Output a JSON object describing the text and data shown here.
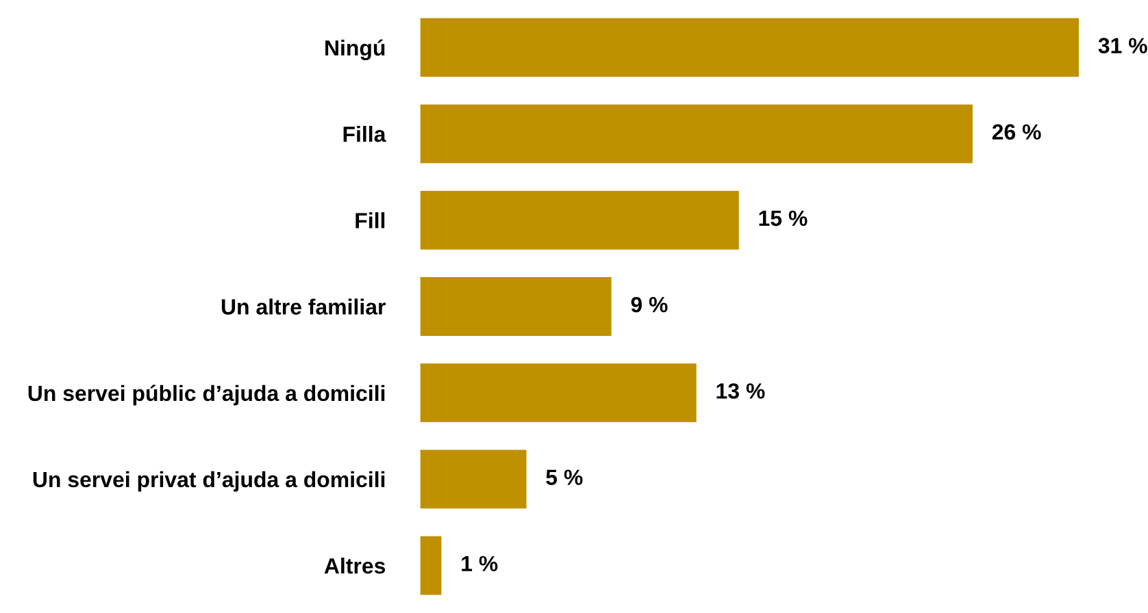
{
  "chart_data": {
    "type": "bar",
    "orientation": "horizontal",
    "categories": [
      "Ningú",
      "Filla",
      "Fill",
      "Un altre familiar",
      "Un servei públic d’ajuda a domicili",
      "Un servei privat d’ajuda a domicili",
      "Altres"
    ],
    "values": [
      31,
      26,
      15,
      9,
      13,
      5,
      1
    ],
    "value_labels": [
      "31 %",
      "26 %",
      "15 %",
      "9 %",
      "13 %",
      "5 %",
      "1 %"
    ],
    "color": "#bf9000",
    "relative": false,
    "grid": false,
    "legend": false
  }
}
